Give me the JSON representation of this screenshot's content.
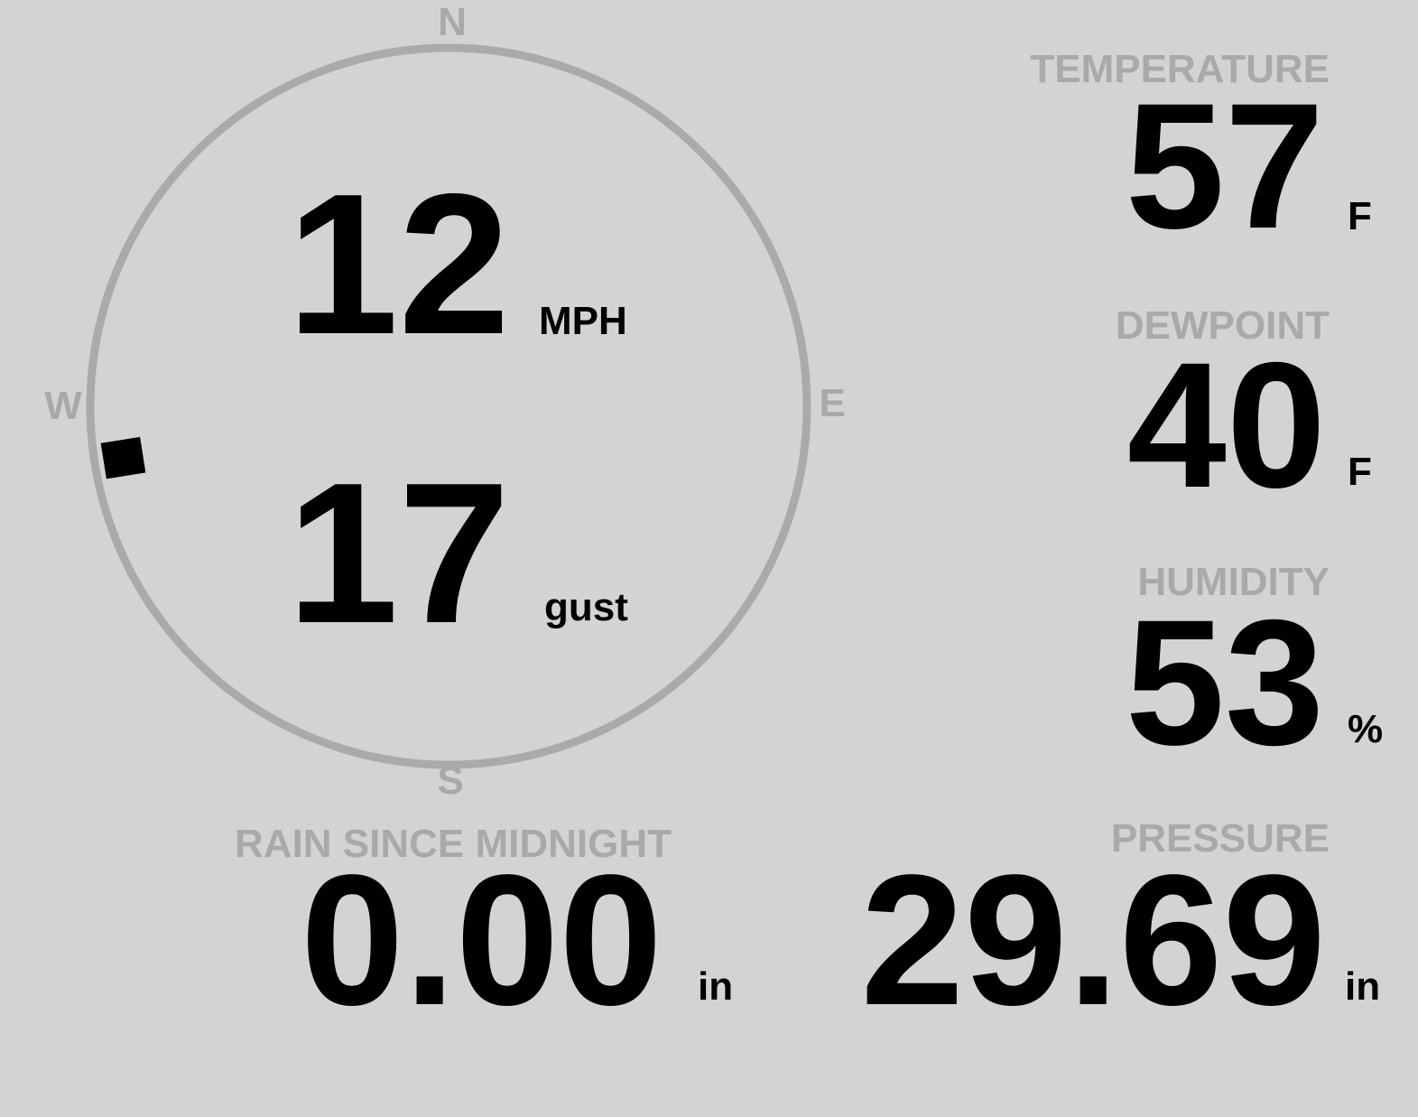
{
  "wind": {
    "speed": "12",
    "speed_unit": "MPH",
    "gust": "17",
    "gust_label": "gust",
    "direction_deg": 261,
    "compass": {
      "n": "N",
      "e": "E",
      "s": "S",
      "w": "W"
    }
  },
  "temperature": {
    "label": "TEMPERATURE",
    "value": "57",
    "unit": "F"
  },
  "dewpoint": {
    "label": "DEWPOINT",
    "value": "40",
    "unit": "F"
  },
  "humidity": {
    "label": "HUMIDITY",
    "value": "53",
    "unit": "%"
  },
  "pressure": {
    "label": "PRESSURE",
    "value": "29.69",
    "unit": "in"
  },
  "rain": {
    "label": "RAIN SINCE MIDNIGHT",
    "value": "0.00",
    "unit": "in"
  },
  "colors": {
    "background": "#d3d3d3",
    "label": "#a9a9a9",
    "ring": "#aaaaaa",
    "value": "#000000"
  }
}
